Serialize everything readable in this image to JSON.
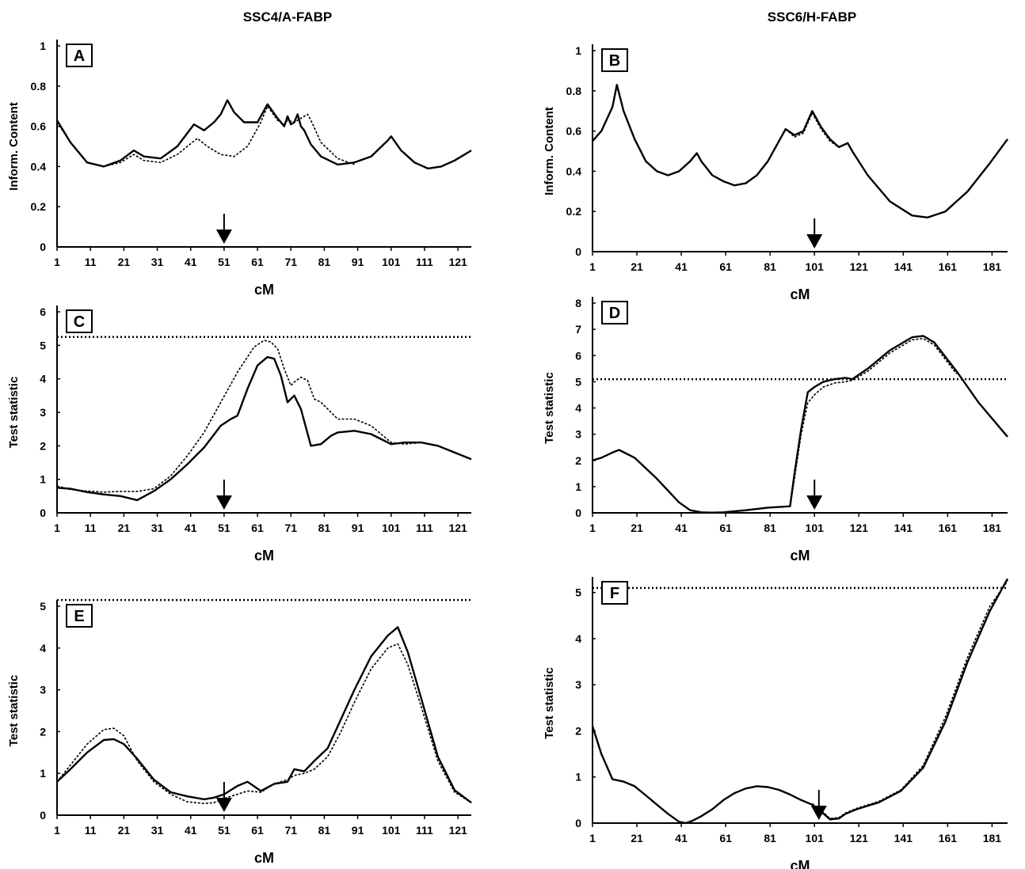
{
  "figure": {
    "column_titles": [
      "SSC4/A-FABP",
      "SSC6/H-FABP"
    ]
  },
  "chart_data": [
    {
      "id": "A",
      "panel_label": "A",
      "type": "line",
      "xlabel": "cM",
      "ylabel": "Inform. Content",
      "ylim": [
        0,
        1
      ],
      "xlim": [
        1,
        125
      ],
      "yticks": [
        "0",
        "0.2",
        "0.4",
        "0.6",
        "0.8",
        "1"
      ],
      "yticks_values": [
        0,
        0.2,
        0.4,
        0.6,
        0.8,
        1
      ],
      "xticks": [
        "1",
        "11",
        "21",
        "31",
        "41",
        "51",
        "61",
        "71",
        "81",
        "91",
        "101",
        "111",
        "121"
      ],
      "xticks_values": [
        1,
        11,
        21,
        31,
        41,
        51,
        61,
        71,
        81,
        91,
        101,
        111,
        121
      ],
      "reference_line": null,
      "arrow_x": 51,
      "series": [
        {
          "style": "solid",
          "x": [
            1,
            5,
            10,
            15,
            20,
            24,
            27,
            32,
            37,
            42,
            45,
            48,
            50,
            52,
            54,
            57,
            61,
            64,
            67,
            69,
            70,
            71,
            72,
            73,
            74,
            75,
            77,
            80,
            85,
            90,
            95,
            100,
            101,
            104,
            108,
            112,
            116,
            120,
            125
          ],
          "y": [
            0.63,
            0.52,
            0.42,
            0.4,
            0.43,
            0.48,
            0.45,
            0.44,
            0.5,
            0.61,
            0.58,
            0.62,
            0.66,
            0.73,
            0.67,
            0.62,
            0.62,
            0.71,
            0.64,
            0.6,
            0.65,
            0.61,
            0.62,
            0.66,
            0.6,
            0.58,
            0.51,
            0.45,
            0.41,
            0.42,
            0.45,
            0.53,
            0.55,
            0.48,
            0.42,
            0.39,
            0.4,
            0.43,
            0.48
          ]
        },
        {
          "style": "dotted",
          "x": [
            1,
            5,
            10,
            15,
            20,
            24,
            27,
            32,
            37,
            43,
            46,
            50,
            54,
            58,
            62,
            64,
            67,
            69,
            70,
            72,
            74,
            76,
            77,
            80,
            85,
            90
          ],
          "y": [
            0.62,
            0.52,
            0.42,
            0.4,
            0.42,
            0.46,
            0.43,
            0.42,
            0.46,
            0.54,
            0.5,
            0.46,
            0.45,
            0.5,
            0.62,
            0.7,
            0.63,
            0.61,
            0.63,
            0.62,
            0.64,
            0.66,
            0.63,
            0.52,
            0.44,
            0.41
          ]
        }
      ]
    },
    {
      "id": "B",
      "panel_label": "B",
      "type": "line",
      "xlabel": "cM",
      "ylabel": "Inform. Content",
      "ylim": [
        0,
        1
      ],
      "xlim": [
        1,
        188
      ],
      "yticks": [
        "0",
        "0.2",
        "0.4",
        "0.6",
        "0.8",
        "1"
      ],
      "yticks_values": [
        0,
        0.2,
        0.4,
        0.6,
        0.8,
        1
      ],
      "xticks": [
        "1",
        "21",
        "41",
        "61",
        "81",
        "101",
        "121",
        "141",
        "161",
        "181"
      ],
      "xticks_values": [
        1,
        21,
        41,
        61,
        81,
        101,
        121,
        141,
        161,
        181
      ],
      "reference_line": null,
      "arrow_x": 101,
      "series": [
        {
          "style": "solid",
          "x": [
            1,
            5,
            10,
            12,
            15,
            20,
            25,
            30,
            35,
            40,
            45,
            48,
            50,
            55,
            60,
            65,
            70,
            75,
            80,
            85,
            88,
            92,
            96,
            100,
            104,
            108,
            112,
            116,
            118,
            125,
            135,
            145,
            152,
            160,
            170,
            180,
            188
          ],
          "y": [
            0.55,
            0.6,
            0.72,
            0.83,
            0.7,
            0.56,
            0.45,
            0.4,
            0.38,
            0.4,
            0.45,
            0.49,
            0.45,
            0.38,
            0.35,
            0.33,
            0.34,
            0.38,
            0.45,
            0.55,
            0.61,
            0.58,
            0.6,
            0.7,
            0.62,
            0.56,
            0.52,
            0.54,
            0.5,
            0.38,
            0.25,
            0.18,
            0.17,
            0.2,
            0.3,
            0.44,
            0.56
          ]
        },
        {
          "style": "dotted",
          "x": [
            88,
            92,
            96,
            100,
            104,
            108,
            112,
            116,
            118
          ],
          "y": [
            0.61,
            0.57,
            0.59,
            0.69,
            0.61,
            0.55,
            0.52,
            0.54,
            0.5
          ]
        }
      ]
    },
    {
      "id": "C",
      "panel_label": "C",
      "type": "line",
      "xlabel": "cM",
      "ylabel": "Test statistic",
      "ylim": [
        0,
        6
      ],
      "xlim": [
        1,
        125
      ],
      "yticks": [
        "0",
        "1",
        "2",
        "3",
        "4",
        "5",
        "6"
      ],
      "yticks_values": [
        0,
        1,
        2,
        3,
        4,
        5,
        6
      ],
      "xticks": [
        "1",
        "11",
        "21",
        "31",
        "41",
        "51",
        "61",
        "71",
        "81",
        "91",
        "101",
        "111",
        "121"
      ],
      "xticks_values": [
        1,
        11,
        21,
        31,
        41,
        51,
        61,
        71,
        81,
        91,
        101,
        111,
        121
      ],
      "reference_line": 5.25,
      "arrow_x": 51,
      "series": [
        {
          "style": "solid",
          "x": [
            1,
            5,
            10,
            15,
            20,
            25,
            30,
            35,
            40,
            45,
            50,
            53,
            55,
            58,
            61,
            64,
            66,
            68,
            70,
            72,
            74,
            77,
            80,
            83,
            85,
            90,
            95,
            101,
            105,
            110,
            115,
            120,
            125
          ],
          "y": [
            0.75,
            0.72,
            0.62,
            0.55,
            0.5,
            0.38,
            0.65,
            1.0,
            1.45,
            1.95,
            2.6,
            2.8,
            2.9,
            3.7,
            4.4,
            4.65,
            4.6,
            4.1,
            3.3,
            3.5,
            3.1,
            2.0,
            2.05,
            2.3,
            2.4,
            2.45,
            2.35,
            2.05,
            2.1,
            2.1,
            2.0,
            1.8,
            1.6
          ]
        },
        {
          "style": "dotted",
          "x": [
            1,
            5,
            10,
            15,
            20,
            25,
            30,
            35,
            40,
            45,
            50,
            55,
            60,
            63,
            65,
            67,
            69,
            71,
            72,
            74,
            76,
            78,
            80,
            83,
            85,
            90,
            95,
            101,
            105,
            110
          ],
          "y": [
            0.8,
            0.7,
            0.65,
            0.62,
            0.64,
            0.64,
            0.72,
            1.1,
            1.7,
            2.4,
            3.3,
            4.2,
            4.95,
            5.15,
            5.1,
            4.9,
            4.3,
            3.8,
            3.9,
            4.05,
            3.95,
            3.4,
            3.3,
            3.0,
            2.8,
            2.8,
            2.6,
            2.1,
            2.05,
            2.1
          ]
        }
      ]
    },
    {
      "id": "D",
      "panel_label": "D",
      "type": "line",
      "xlabel": "cM",
      "ylabel": "Test statistic",
      "ylim": [
        0,
        8
      ],
      "xlim": [
        1,
        188
      ],
      "yticks": [
        "0",
        "1",
        "2",
        "3",
        "4",
        "5",
        "6",
        "7",
        "8"
      ],
      "yticks_values": [
        0,
        1,
        2,
        3,
        4,
        5,
        6,
        7,
        8
      ],
      "xticks": [
        "1",
        "21",
        "41",
        "61",
        "81",
        "101",
        "121",
        "141",
        "161",
        "181"
      ],
      "xticks_values": [
        1,
        21,
        41,
        61,
        81,
        101,
        121,
        141,
        161,
        181
      ],
      "reference_line": 5.1,
      "arrow_x": 101,
      "series": [
        {
          "style": "solid",
          "x": [
            1,
            5,
            10,
            13,
            20,
            30,
            40,
            45,
            50,
            55,
            60,
            70,
            80,
            90,
            92,
            95,
            98,
            101,
            105,
            110,
            115,
            118,
            125,
            135,
            145,
            150,
            155,
            165,
            175,
            188
          ],
          "y": [
            2.0,
            2.1,
            2.3,
            2.4,
            2.1,
            1.3,
            0.4,
            0.1,
            0.02,
            0.01,
            0.02,
            0.1,
            0.2,
            0.25,
            1.5,
            3.2,
            4.6,
            4.8,
            5.0,
            5.1,
            5.15,
            5.1,
            5.5,
            6.2,
            6.7,
            6.75,
            6.5,
            5.4,
            4.2,
            2.9
          ]
        },
        {
          "style": "dotted",
          "x": [
            90,
            92,
            95,
            98,
            101,
            105,
            110,
            115,
            118,
            125,
            135,
            145,
            150,
            155,
            165
          ],
          "y": [
            0.25,
            1.3,
            3.0,
            4.2,
            4.5,
            4.8,
            4.95,
            5.0,
            5.05,
            5.4,
            6.1,
            6.6,
            6.65,
            6.4,
            5.3
          ]
        }
      ]
    },
    {
      "id": "E",
      "panel_label": "E",
      "type": "line",
      "xlabel": "cM",
      "ylabel": "Test statistic",
      "ylim": [
        0,
        5
      ],
      "xlim": [
        1,
        125
      ],
      "yticks": [
        "0",
        "1",
        "2",
        "3",
        "4",
        "5"
      ],
      "yticks_values": [
        0,
        1,
        2,
        3,
        4,
        5
      ],
      "xticks": [
        "1",
        "11",
        "21",
        "31",
        "41",
        "51",
        "61",
        "71",
        "81",
        "91",
        "101",
        "111",
        "121"
      ],
      "xticks_values": [
        1,
        11,
        21,
        31,
        41,
        51,
        61,
        71,
        81,
        91,
        101,
        111,
        121
      ],
      "reference_line": 5.15,
      "arrow_x": 51,
      "series": [
        {
          "style": "solid",
          "x": [
            1,
            5,
            10,
            15,
            18,
            21,
            25,
            30,
            35,
            40,
            45,
            48,
            51,
            55,
            58,
            62,
            66,
            70,
            72,
            75,
            78,
            82,
            86,
            90,
            95,
            100,
            103,
            106,
            110,
            115,
            120,
            125
          ],
          "y": [
            0.8,
            1.1,
            1.5,
            1.8,
            1.82,
            1.7,
            1.35,
            0.85,
            0.55,
            0.45,
            0.38,
            0.42,
            0.5,
            0.7,
            0.8,
            0.58,
            0.75,
            0.8,
            1.1,
            1.05,
            1.3,
            1.6,
            2.3,
            3.0,
            3.8,
            4.3,
            4.5,
            3.9,
            2.8,
            1.4,
            0.6,
            0.3
          ]
        },
        {
          "style": "dotted",
          "x": [
            1,
            5,
            10,
            15,
            18,
            21,
            25,
            30,
            35,
            40,
            45,
            48,
            51,
            55,
            58,
            62,
            66,
            70,
            72,
            75,
            78,
            82,
            86,
            90,
            95,
            100,
            103,
            106,
            110,
            115,
            120,
            125
          ],
          "y": [
            0.8,
            1.2,
            1.7,
            2.05,
            2.08,
            1.9,
            1.3,
            0.8,
            0.5,
            0.32,
            0.28,
            0.3,
            0.4,
            0.5,
            0.58,
            0.55,
            0.75,
            0.85,
            0.95,
            1.0,
            1.1,
            1.4,
            2.0,
            2.7,
            3.5,
            4.0,
            4.1,
            3.6,
            2.6,
            1.3,
            0.55,
            0.3
          ]
        }
      ]
    },
    {
      "id": "F",
      "panel_label": "F",
      "type": "line",
      "xlabel": "cM",
      "ylabel": "Test statistic",
      "ylim": [
        0,
        5.2
      ],
      "xlim": [
        1,
        188
      ],
      "yticks": [
        "0",
        "1",
        "2",
        "3",
        "4",
        "5"
      ],
      "yticks_values": [
        0,
        1,
        2,
        3,
        4,
        5
      ],
      "xticks": [
        "1",
        "21",
        "41",
        "61",
        "81",
        "101",
        "121",
        "141",
        "161",
        "181"
      ],
      "xticks_values": [
        1,
        21,
        41,
        61,
        81,
        101,
        121,
        141,
        161,
        181
      ],
      "reference_line": 5.1,
      "arrow_x": 103,
      "series": [
        {
          "style": "solid",
          "x": [
            1,
            5,
            10,
            15,
            20,
            25,
            30,
            35,
            40,
            43,
            46,
            50,
            55,
            60,
            65,
            70,
            75,
            80,
            85,
            90,
            95,
            100,
            104,
            108,
            112,
            115,
            120,
            130,
            140,
            150,
            160,
            170,
            180,
            188
          ],
          "y": [
            2.1,
            1.5,
            0.95,
            0.9,
            0.8,
            0.6,
            0.4,
            0.2,
            0.03,
            0.0,
            0.05,
            0.15,
            0.3,
            0.5,
            0.65,
            0.75,
            0.8,
            0.78,
            0.72,
            0.62,
            0.5,
            0.4,
            0.25,
            0.08,
            0.1,
            0.2,
            0.3,
            0.45,
            0.7,
            1.2,
            2.2,
            3.5,
            4.6,
            5.3
          ]
        },
        {
          "style": "dotted",
          "x": [
            100,
            104,
            108,
            112,
            115,
            120,
            130,
            140,
            150,
            160,
            170,
            180,
            188
          ],
          "y": [
            0.42,
            0.28,
            0.1,
            0.12,
            0.22,
            0.32,
            0.47,
            0.72,
            1.25,
            2.3,
            3.6,
            4.7,
            5.25
          ]
        }
      ]
    }
  ]
}
